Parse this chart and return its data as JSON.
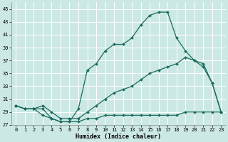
{
  "xlabel": "Humidex (Indice chaleur)",
  "bg_color": "#cce8e4",
  "line_color": "#1a6b5e",
  "grid_color": "#ffffff",
  "ylim": [
    27,
    46
  ],
  "xlim": [
    -0.5,
    23.5
  ],
  "yticks": [
    27,
    29,
    31,
    33,
    35,
    37,
    39,
    41,
    43,
    45
  ],
  "xticks": [
    0,
    1,
    2,
    3,
    4,
    5,
    6,
    7,
    8,
    9,
    10,
    11,
    12,
    13,
    14,
    15,
    16,
    17,
    18,
    19,
    20,
    21,
    22,
    23
  ],
  "series1_x": [
    0,
    1,
    2,
    3,
    4,
    5,
    6,
    7,
    8,
    9,
    10,
    11,
    12,
    13,
    14,
    15,
    16,
    17,
    18,
    19,
    20,
    21,
    22,
    23
  ],
  "series1_y": [
    30,
    29.5,
    29.5,
    29.5,
    28,
    27.5,
    27.5,
    29.5,
    35.5,
    36.5,
    38.5,
    39.5,
    39.5,
    40.5,
    42.5,
    44,
    44.5,
    44.5,
    40.5,
    38.5,
    37,
    36,
    33.5,
    29
  ],
  "series2_x": [
    0,
    1,
    2,
    3,
    4,
    5,
    6,
    7,
    8,
    9,
    10,
    11,
    12,
    13,
    14,
    15,
    16,
    17,
    18,
    19,
    20,
    21,
    22,
    23
  ],
  "series2_y": [
    30,
    29.5,
    29.5,
    30,
    29,
    28,
    28,
    28,
    29,
    30,
    31,
    32,
    32.5,
    33,
    34,
    35,
    35.5,
    36,
    36.5,
    37.5,
    37,
    36.5,
    33.5,
    29
  ],
  "series3_x": [
    0,
    1,
    2,
    3,
    4,
    5,
    6,
    7,
    8,
    9,
    10,
    11,
    12,
    13,
    14,
    15,
    16,
    17,
    18,
    19,
    20,
    21,
    22,
    23
  ],
  "series3_y": [
    30,
    29.5,
    29.5,
    28.5,
    28,
    27.5,
    27.5,
    27.5,
    28,
    28,
    28.5,
    28.5,
    28.5,
    28.5,
    28.5,
    28.5,
    28.5,
    28.5,
    28.5,
    29,
    29,
    29,
    29,
    29
  ]
}
